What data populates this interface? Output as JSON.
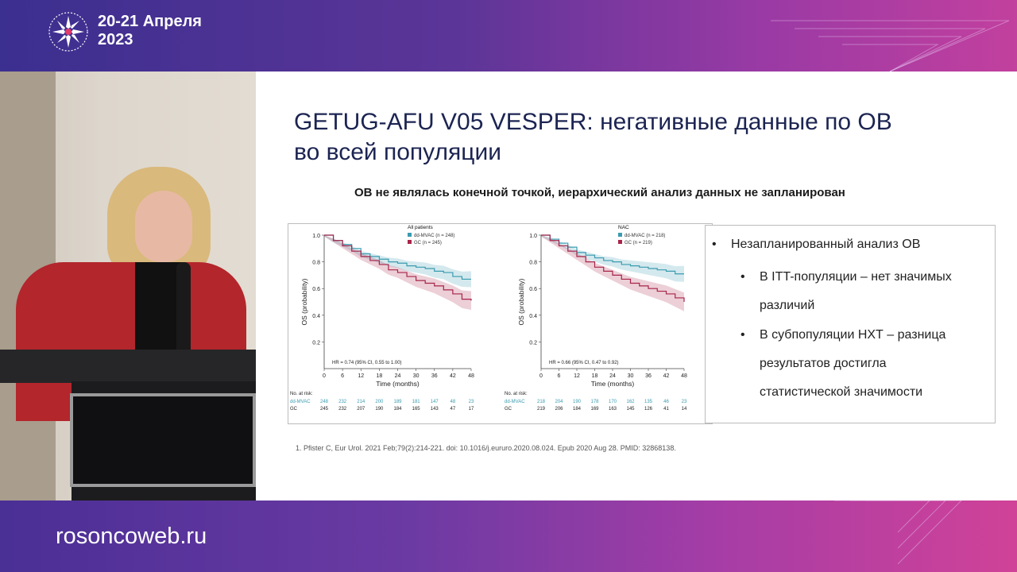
{
  "event": {
    "date_line1": "20-21 Апреля",
    "date_line2": "2023",
    "site": "rosoncoweb.ru"
  },
  "slide": {
    "title_line1": "GETUG-AFU V05 VESPER: негативные данные по ОВ",
    "title_line2": "во всей популяции",
    "subtitle": "ОВ не являлась конечной точкой, иерархический анализ данных не запланирован",
    "bullets": {
      "main": "Незапланированный анализ ОВ",
      "sub1": "В ITT-популяции – нет значимых различий",
      "sub2": "В субпопуляции НХТ – разница результатов достигла статистической значимости"
    },
    "footnote": "1.    Pfister C, Eur Urol. 2021 Feb;79(2):214-221. doi: 10.1016/j.eururo.2020.08.024. Epub 2020 Aug 28. PMID: 32868138."
  },
  "chart_data": [
    {
      "type": "line",
      "panel_title": "All patients",
      "xlabel": "Time (months)",
      "ylabel": "OS (probability)",
      "xlim": [
        0,
        48
      ],
      "ylim": [
        0,
        1.0
      ],
      "x_ticks": [
        0,
        6,
        12,
        18,
        24,
        30,
        36,
        42,
        48
      ],
      "y_ticks": [
        0,
        0.2,
        0.4,
        0.6,
        0.8,
        1.0
      ],
      "hr_text": "HR = 0.74 (95% CI, 0.55 to 1.00)",
      "series": [
        {
          "name": "dd-MVAC (n = 248)",
          "color": "#3a9bb0",
          "x": [
            0,
            3,
            6,
            9,
            12,
            15,
            18,
            21,
            24,
            27,
            30,
            33,
            36,
            39,
            42,
            45,
            48
          ],
          "y": [
            1.0,
            0.96,
            0.93,
            0.9,
            0.86,
            0.84,
            0.82,
            0.8,
            0.79,
            0.77,
            0.76,
            0.75,
            0.73,
            0.72,
            0.69,
            0.67,
            0.67
          ]
        },
        {
          "name": "GC (n = 245)",
          "color": "#a8244a",
          "x": [
            0,
            3,
            6,
            9,
            12,
            15,
            18,
            21,
            24,
            27,
            30,
            33,
            36,
            39,
            42,
            45,
            48
          ],
          "y": [
            1.0,
            0.96,
            0.92,
            0.88,
            0.84,
            0.81,
            0.78,
            0.74,
            0.72,
            0.69,
            0.66,
            0.64,
            0.62,
            0.59,
            0.56,
            0.52,
            0.51
          ]
        }
      ],
      "risk_table": {
        "header": "No. at risk:",
        "rows": [
          {
            "label": "dd-MVAC",
            "values": [
              "248",
              "232",
              "214",
              "200",
              "189",
              "181",
              "147",
              "48",
              "23"
            ]
          },
          {
            "label": "GC",
            "values": [
              "245",
              "232",
              "207",
              "190",
              "184",
              "165",
              "143",
              "47",
              "17"
            ]
          }
        ]
      }
    },
    {
      "type": "line",
      "panel_title": "NAC",
      "xlabel": "Time (months)",
      "ylabel": "OS (probability)",
      "xlim": [
        0,
        48
      ],
      "ylim": [
        0,
        1.0
      ],
      "x_ticks": [
        0,
        6,
        12,
        18,
        24,
        30,
        36,
        42,
        48
      ],
      "y_ticks": [
        0,
        0.2,
        0.4,
        0.6,
        0.8,
        1.0
      ],
      "hr_text": "HR = 0.66 (95% CI, 0.47 to 0.92)",
      "series": [
        {
          "name": "dd-MVAC (n = 218)",
          "color": "#3a9bb0",
          "x": [
            0,
            3,
            6,
            9,
            12,
            15,
            18,
            21,
            24,
            27,
            30,
            33,
            36,
            39,
            42,
            45,
            48
          ],
          "y": [
            1.0,
            0.97,
            0.94,
            0.91,
            0.87,
            0.85,
            0.83,
            0.81,
            0.8,
            0.78,
            0.77,
            0.76,
            0.75,
            0.74,
            0.73,
            0.71,
            0.71
          ]
        },
        {
          "name": "GC (n = 219)",
          "color": "#a8244a",
          "x": [
            0,
            3,
            6,
            9,
            12,
            15,
            18,
            21,
            24,
            27,
            30,
            33,
            36,
            39,
            42,
            45,
            48
          ],
          "y": [
            1.0,
            0.96,
            0.92,
            0.88,
            0.84,
            0.8,
            0.76,
            0.73,
            0.7,
            0.67,
            0.64,
            0.62,
            0.6,
            0.58,
            0.56,
            0.53,
            0.5
          ]
        }
      ],
      "risk_table": {
        "header": "No. at risk:",
        "rows": [
          {
            "label": "dd-MVAC",
            "values": [
              "218",
              "204",
              "190",
              "178",
              "170",
              "162",
              "135",
              "46",
              "23"
            ]
          },
          {
            "label": "GC",
            "values": [
              "219",
              "206",
              "184",
              "169",
              "163",
              "145",
              "126",
              "41",
              "14"
            ]
          }
        ]
      }
    }
  ]
}
